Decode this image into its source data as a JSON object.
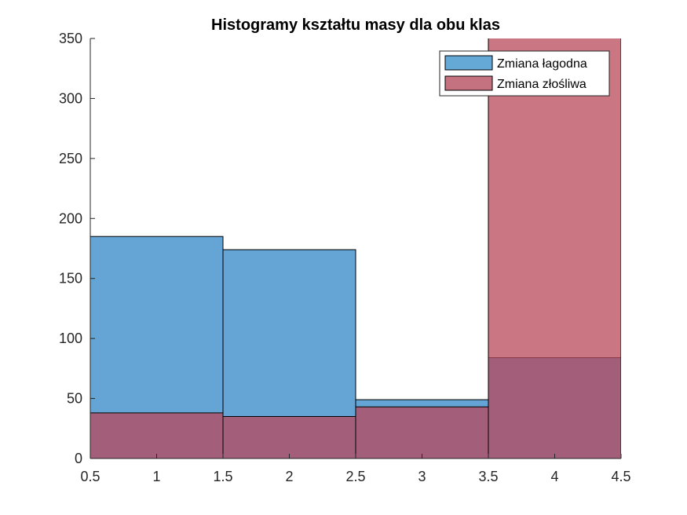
{
  "chart_data": {
    "type": "bar",
    "title": "Histogramy kształtu masy dla obu klas",
    "xlabel": "",
    "ylabel": "",
    "xlim": [
      0.5,
      4.5
    ],
    "ylim": [
      0,
      350
    ],
    "x_ticks": [
      "0.5",
      "1",
      "1.5",
      "2",
      "2.5",
      "3",
      "3.5",
      "4",
      "4.5"
    ],
    "y_ticks": [
      "0",
      "50",
      "100",
      "150",
      "200",
      "250",
      "300",
      "350"
    ],
    "bin_edges": [
      0.5,
      1.5,
      2.5,
      3.5,
      4.5
    ],
    "series": [
      {
        "name": "Zmiana łagodna",
        "values": [
          185,
          174,
          49,
          84
        ],
        "color": "#3d8fcc",
        "overlay": "overlap"
      },
      {
        "name": "Zmiana złośliwa",
        "values": [
          38,
          35,
          43,
          366
        ],
        "color": "#b8485a"
      }
    ],
    "legend_position": "top-right",
    "grid": false,
    "colors": {
      "overlap": "#8a4f70"
    }
  }
}
